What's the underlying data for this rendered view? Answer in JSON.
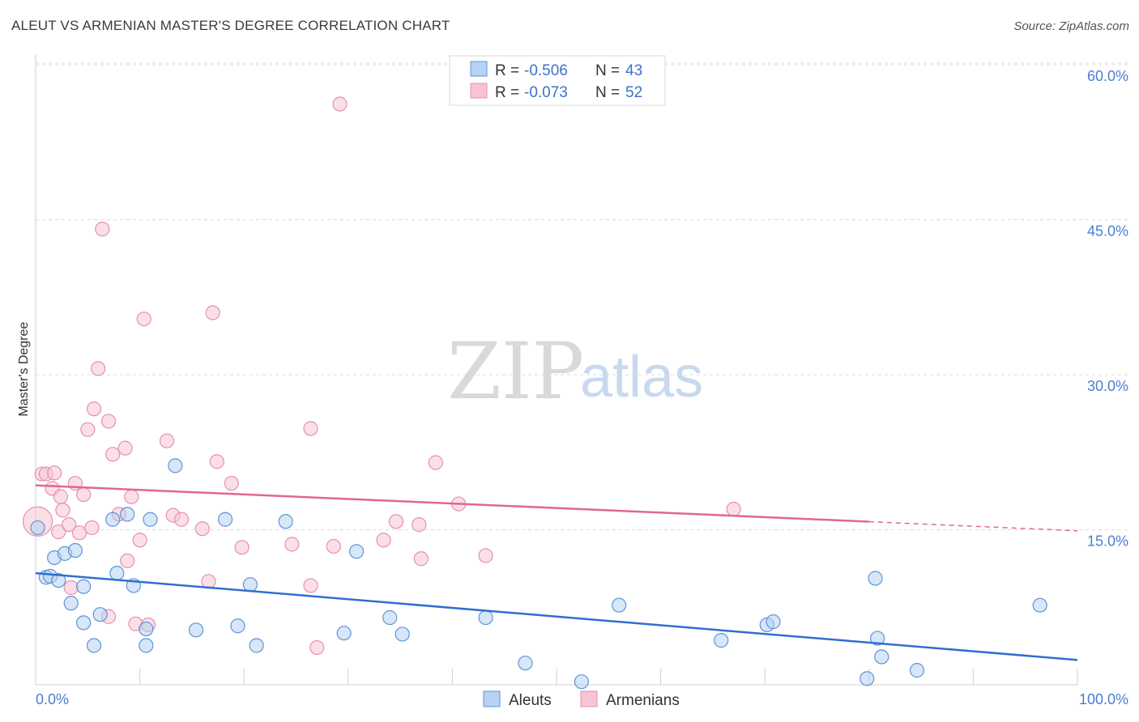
{
  "header": {
    "title": "ALEUT VS ARMENIAN MASTER'S DEGREE CORRELATION CHART",
    "source": "Source: ZipAtlas.com"
  },
  "legend": {
    "rows": [
      {
        "r_label": "R =",
        "r_value": "-0.506",
        "n_label": "N =",
        "n_value": "43"
      },
      {
        "r_label": "R =",
        "r_value": "-0.073",
        "n_label": "N =",
        "n_value": "52"
      }
    ]
  },
  "bottom_legend": {
    "aleuts": "Aleuts",
    "armenians": "Armenians"
  },
  "watermark": {
    "zip": "ZIP",
    "atlas": "atlas"
  },
  "colors": {
    "aleut_fill": "#b7d2f3",
    "aleut_stroke": "#5e94d8",
    "aleut_line": "#2f6fcf",
    "armenian_fill": "#f8c4d3",
    "armenian_stroke": "#e690ab",
    "armenian_line": "#e0688f",
    "tick": "#4a7fd1"
  },
  "chart_data": {
    "type": "scatter",
    "title": "ALEUT VS ARMENIAN MASTER'S DEGREE CORRELATION CHART",
    "xlabel": "",
    "ylabel": "Master's Degree",
    "xlim": [
      0,
      100
    ],
    "ylim": [
      0,
      60
    ],
    "x_tick_labels": [
      "0.0%",
      "100.0%"
    ],
    "y_ticks": [
      15,
      30,
      45,
      60
    ],
    "y_tick_labels": [
      "15.0%",
      "30.0%",
      "45.0%",
      "60.0%"
    ],
    "grid": true,
    "series": [
      {
        "name": "Aleuts",
        "r": -0.506,
        "n": 43,
        "trend": {
          "x": [
            0,
            100
          ],
          "y": [
            10.8,
            2.4
          ],
          "dashed_from": null
        },
        "points": [
          [
            0.2,
            15.2
          ],
          [
            1.0,
            10.4
          ],
          [
            1.4,
            10.5
          ],
          [
            1.8,
            12.3
          ],
          [
            2.2,
            10.1
          ],
          [
            2.8,
            12.7
          ],
          [
            3.4,
            7.9
          ],
          [
            3.8,
            13.0
          ],
          [
            4.6,
            6.0
          ],
          [
            4.6,
            9.5
          ],
          [
            5.6,
            3.8
          ],
          [
            6.2,
            6.8
          ],
          [
            7.4,
            16.0
          ],
          [
            7.8,
            10.8
          ],
          [
            8.8,
            16.5
          ],
          [
            9.4,
            9.6
          ],
          [
            10.6,
            3.8
          ],
          [
            10.6,
            5.4
          ],
          [
            11.0,
            16.0
          ],
          [
            13.4,
            21.2
          ],
          [
            15.4,
            5.3
          ],
          [
            18.2,
            16.0
          ],
          [
            19.4,
            5.7
          ],
          [
            20.6,
            9.7
          ],
          [
            21.2,
            3.8
          ],
          [
            24.0,
            15.8
          ],
          [
            29.6,
            5.0
          ],
          [
            30.8,
            12.9
          ],
          [
            34.0,
            6.5
          ],
          [
            35.2,
            4.9
          ],
          [
            43.2,
            6.5
          ],
          [
            47.0,
            2.1
          ],
          [
            52.4,
            0.3
          ],
          [
            56.0,
            7.7
          ],
          [
            65.8,
            4.3
          ],
          [
            70.2,
            5.8
          ],
          [
            70.8,
            6.1
          ],
          [
            79.8,
            0.6
          ],
          [
            80.6,
            10.3
          ],
          [
            80.8,
            4.5
          ],
          [
            81.2,
            2.7
          ],
          [
            84.6,
            1.4
          ],
          [
            96.4,
            7.7
          ]
        ]
      },
      {
        "name": "Armenians",
        "r": -0.073,
        "n": 52,
        "trend": {
          "x": [
            0,
            100
          ],
          "y": [
            19.3,
            14.9
          ],
          "dashed_from": 80
        },
        "points": [
          [
            0.2,
            15.8
          ],
          [
            0.6,
            20.4
          ],
          [
            1.0,
            20.4
          ],
          [
            1.6,
            19.0
          ],
          [
            1.8,
            20.5
          ],
          [
            2.2,
            14.8
          ],
          [
            2.4,
            18.2
          ],
          [
            2.6,
            16.9
          ],
          [
            3.2,
            15.5
          ],
          [
            3.4,
            9.4
          ],
          [
            3.8,
            19.5
          ],
          [
            4.2,
            14.7
          ],
          [
            4.6,
            18.4
          ],
          [
            5.0,
            24.7
          ],
          [
            5.4,
            15.2
          ],
          [
            5.6,
            26.7
          ],
          [
            6.0,
            30.6
          ],
          [
            6.4,
            44.1
          ],
          [
            7.0,
            25.5
          ],
          [
            7.0,
            6.6
          ],
          [
            7.4,
            22.3
          ],
          [
            8.0,
            16.5
          ],
          [
            8.6,
            22.9
          ],
          [
            8.8,
            12.0
          ],
          [
            9.2,
            18.2
          ],
          [
            9.6,
            5.9
          ],
          [
            10.0,
            14.0
          ],
          [
            10.4,
            35.4
          ],
          [
            10.8,
            5.8
          ],
          [
            12.6,
            23.6
          ],
          [
            13.2,
            16.4
          ],
          [
            14.0,
            16.0
          ],
          [
            16.0,
            15.1
          ],
          [
            16.6,
            10.0
          ],
          [
            17.0,
            36.0
          ],
          [
            17.4,
            21.6
          ],
          [
            18.8,
            19.5
          ],
          [
            19.8,
            13.3
          ],
          [
            24.6,
            13.6
          ],
          [
            26.4,
            24.8
          ],
          [
            26.4,
            9.6
          ],
          [
            27.0,
            3.6
          ],
          [
            28.6,
            13.4
          ],
          [
            29.2,
            56.2
          ],
          [
            33.4,
            14.0
          ],
          [
            34.6,
            15.8
          ],
          [
            36.8,
            15.5
          ],
          [
            37.0,
            12.2
          ],
          [
            38.4,
            21.5
          ],
          [
            40.6,
            17.5
          ],
          [
            43.2,
            12.5
          ],
          [
            67.0,
            17.0
          ]
        ]
      }
    ]
  }
}
